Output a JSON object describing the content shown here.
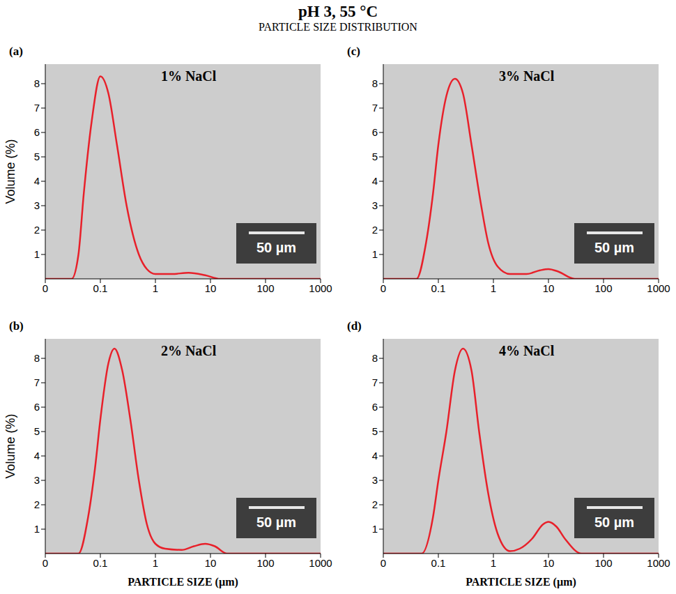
{
  "title": "pH 3, 55 °C",
  "subtitle": "PARTICLE SIZE DISTRIBUTION",
  "chart_data": [
    {
      "type": "line",
      "panel": "(a)",
      "title": "1% NaCl",
      "annotations": [
        "50 µm"
      ],
      "ylabel": "Volume (%)",
      "log": "x",
      "grid": false,
      "color": "#e8202a",
      "xlim": [
        0.01,
        1000
      ],
      "xticks": [
        {
          "value": 0.01,
          "label": "0"
        },
        0.1,
        1,
        10,
        100,
        1000
      ],
      "ylim": [
        0,
        8.8
      ],
      "yticks": [
        1,
        2,
        3,
        4,
        5,
        6,
        7,
        8
      ],
      "x": [
        0.01,
        0.03,
        0.04,
        0.05,
        0.07,
        0.1,
        0.14,
        0.2,
        0.3,
        0.5,
        0.7,
        1,
        2,
        4,
        8,
        15,
        30,
        1000
      ],
      "values": [
        0,
        0,
        1,
        3.5,
        6.5,
        8.3,
        7.6,
        5.5,
        3,
        1,
        0.4,
        0.2,
        0.2,
        0.25,
        0.15,
        0,
        0,
        0
      ]
    },
    {
      "type": "line",
      "panel": "(b)",
      "title": "2% NaCl",
      "annotations": [
        "50 µm"
      ],
      "ylabel": "Volume (%)",
      "xlabel": "PARTICLE SIZE (µm)",
      "log": "x",
      "grid": false,
      "color": "#e8202a",
      "xlim": [
        0.01,
        1000
      ],
      "xticks": [
        {
          "value": 0.01,
          "label": "0"
        },
        0.1,
        1,
        10,
        100,
        1000
      ],
      "ylim": [
        0,
        8.8
      ],
      "yticks": [
        1,
        2,
        3,
        4,
        5,
        6,
        7,
        8
      ],
      "x": [
        0.01,
        0.04,
        0.06,
        0.08,
        0.1,
        0.14,
        0.18,
        0.25,
        0.35,
        0.5,
        0.7,
        1,
        1.5,
        3,
        5,
        8,
        12,
        20,
        1000
      ],
      "values": [
        0,
        0,
        1.5,
        3.5,
        5.5,
        7.8,
        8.4,
        7.5,
        5.5,
        3,
        1.2,
        0.4,
        0.2,
        0.15,
        0.3,
        0.4,
        0.3,
        0,
        0
      ]
    },
    {
      "type": "line",
      "panel": "(c)",
      "title": "3% NaCl",
      "annotations": [
        "50 µm"
      ],
      "log": "x",
      "grid": false,
      "color": "#e8202a",
      "xlim": [
        0.01,
        1000
      ],
      "xticks": [
        {
          "value": 0.01,
          "label": "0"
        },
        0.1,
        1,
        10,
        100,
        1000
      ],
      "ylim": [
        0,
        8.8
      ],
      "yticks": [
        1,
        2,
        3,
        4,
        5,
        6,
        7,
        8
      ],
      "x": [
        0.01,
        0.04,
        0.06,
        0.08,
        0.1,
        0.14,
        0.2,
        0.28,
        0.4,
        0.6,
        0.8,
        1.2,
        2,
        4,
        7,
        10,
        15,
        30,
        1000
      ],
      "values": [
        0,
        0,
        1.5,
        3.5,
        5.5,
        7.5,
        8.2,
        7.6,
        5.5,
        3,
        1.5,
        0.5,
        0.2,
        0.2,
        0.35,
        0.4,
        0.3,
        0,
        0
      ]
    },
    {
      "type": "line",
      "panel": "(d)",
      "title": "4% NaCl",
      "annotations": [
        "50 µm"
      ],
      "xlabel": "PARTICLE SIZE (µm)",
      "log": "x",
      "grid": false,
      "color": "#e8202a",
      "xlim": [
        0.01,
        1000
      ],
      "xticks": [
        {
          "value": 0.01,
          "label": "0"
        },
        0.1,
        1,
        10,
        100,
        1000
      ],
      "ylim": [
        0,
        8.8
      ],
      "yticks": [
        1,
        2,
        3,
        4,
        5,
        6,
        7,
        8
      ],
      "x": [
        0.01,
        0.05,
        0.08,
        0.1,
        0.14,
        0.2,
        0.28,
        0.4,
        0.55,
        0.8,
        1.2,
        2,
        3,
        5,
        8,
        10,
        14,
        20,
        40,
        1000
      ],
      "values": [
        0,
        0,
        1.5,
        3,
        5,
        7.5,
        8.4,
        7.5,
        5,
        2.5,
        0.8,
        0.1,
        0.2,
        0.6,
        1.2,
        1.3,
        1.1,
        0.6,
        0,
        0
      ]
    }
  ]
}
